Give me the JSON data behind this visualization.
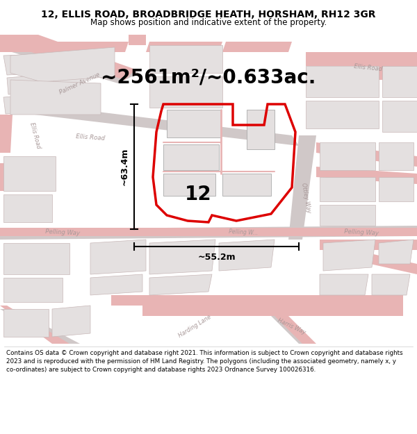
{
  "title_line1": "12, ELLIS ROAD, BROADBRIDGE HEATH, HORSHAM, RH12 3GR",
  "title_line2": "Map shows position and indicative extent of the property.",
  "area_text": "~2561m²/~0.633ac.",
  "label_12": "12",
  "dim_vertical": "~63.4m",
  "dim_horizontal": "~55.2m",
  "footer_text": "Contains OS data © Crown copyright and database right 2021. This information is subject to Crown copyright and database rights 2023 and is reproduced with the permission of HM Land Registry. The polygons (including the associated geometry, namely x, y co-ordinates) are subject to Crown copyright and database rights 2023 Ordnance Survey 100026316.",
  "map_bg": "#f2eeee",
  "road_color_pink": "#e8b4b4",
  "road_color_gray": "#d0c8c8",
  "road_outline": "#d4c0c0",
  "highlight_color": "#dd0000",
  "building_fill": "#e4e0e0",
  "building_stroke": "#c8b8b8",
  "dim_line_color": "#000000",
  "title_bg": "#ffffff",
  "footer_bg": "#ffffff",
  "text_road_color": "#a89898",
  "title_fontsize": 10,
  "subtitle_fontsize": 8.5,
  "area_fontsize": 20,
  "label_fontsize": 20,
  "dim_fontsize": 9,
  "footer_fontsize": 6.3
}
